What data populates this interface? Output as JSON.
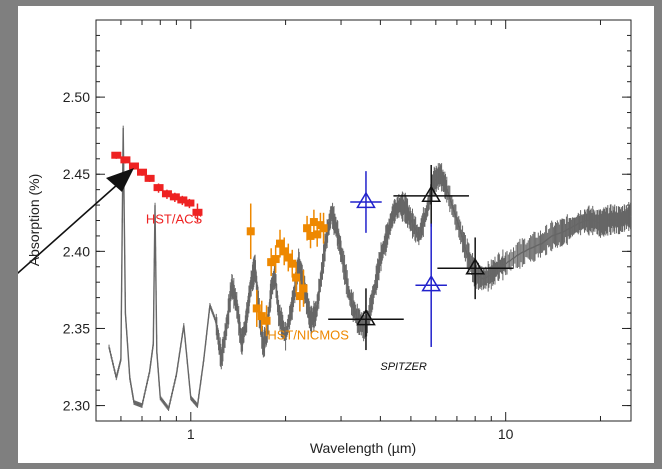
{
  "chart_data": {
    "type": "scatter",
    "xlabel": "Wavelength (µm)",
    "ylabel": "Absorption (%)",
    "xscale": "log",
    "xlim": [
      0.5,
      25
    ],
    "ylim": [
      2.29,
      2.55
    ],
    "xticks": [
      {
        "value": 1,
        "label": "1"
      },
      {
        "value": 10,
        "label": "10"
      }
    ],
    "yticks": [
      {
        "value": 2.3,
        "label": "2.30"
      },
      {
        "value": 2.35,
        "label": "2.35"
      },
      {
        "value": 2.4,
        "label": "2.40"
      },
      {
        "value": 2.45,
        "label": "2.45"
      },
      {
        "value": 2.5,
        "label": "2.50"
      }
    ],
    "grid": false,
    "colors": {
      "model": "#666666",
      "acs": "#ee2222",
      "nicmos": "#ee8800",
      "spitzer": "#111111",
      "spitzer_alt": "#2222cc",
      "arrow": "#111111"
    },
    "annotations": [
      {
        "text": "HST/ACS",
        "color": "#ee2222",
        "x": 0.72,
        "y": 2.418
      },
      {
        "text": "HST/NICMOS",
        "color": "#ee8800",
        "x": 1.75,
        "y": 2.343
      },
      {
        "text": "SPITZER",
        "color": "#111111",
        "italic": true,
        "x": 4.0,
        "y": 2.323
      }
    ],
    "model": {
      "name": "",
      "x": [
        0.55,
        0.58,
        0.6,
        0.61,
        0.62,
        0.64,
        0.66,
        0.7,
        0.74,
        0.76,
        0.77,
        0.78,
        0.8,
        0.85,
        0.9,
        0.95,
        1.0,
        1.05,
        1.1,
        1.15,
        1.2,
        1.25,
        1.3,
        1.35,
        1.4,
        1.45,
        1.5,
        1.55,
        1.6,
        1.65,
        1.7,
        1.75,
        1.8,
        1.85,
        1.9,
        2.0,
        2.1,
        2.2,
        2.3,
        2.4,
        2.5,
        2.6,
        2.7,
        2.8,
        2.9,
        3.0,
        3.2,
        3.4,
        3.6,
        3.8,
        4.0,
        4.2,
        4.4,
        4.6,
        4.8,
        5.0,
        5.3,
        5.6,
        5.9,
        6.2,
        6.5,
        7.0,
        7.5,
        8.0,
        8.5,
        9.0,
        9.5,
        10.0,
        11.0,
        12.0,
        13.0,
        14.0,
        15.0,
        16.0,
        17.0,
        18.0,
        19.0,
        20.0,
        21.0,
        22.0,
        23.0,
        24.0,
        25.0
      ],
      "y": [
        2.338,
        2.318,
        2.33,
        2.48,
        2.36,
        2.318,
        2.302,
        2.3,
        2.322,
        2.34,
        2.43,
        2.335,
        2.305,
        2.298,
        2.32,
        2.352,
        2.305,
        2.3,
        2.33,
        2.365,
        2.355,
        2.33,
        2.352,
        2.378,
        2.365,
        2.34,
        2.355,
        2.378,
        2.39,
        2.36,
        2.338,
        2.35,
        2.375,
        2.385,
        2.36,
        2.345,
        2.365,
        2.392,
        2.375,
        2.355,
        2.36,
        2.385,
        2.41,
        2.425,
        2.415,
        2.4,
        2.37,
        2.355,
        2.35,
        2.372,
        2.395,
        2.41,
        2.425,
        2.43,
        2.428,
        2.42,
        2.41,
        2.425,
        2.445,
        2.45,
        2.44,
        2.42,
        2.4,
        2.385,
        2.382,
        2.385,
        2.39,
        2.392,
        2.398,
        2.402,
        2.405,
        2.41,
        2.412,
        2.415,
        2.418,
        2.42,
        2.42,
        2.418,
        2.42,
        2.421,
        2.42,
        2.422,
        2.423
      ]
    },
    "series": [
      {
        "key": "acs",
        "name": "HST/ACS",
        "marker": "square",
        "x": [
          0.58,
          0.62,
          0.66,
          0.7,
          0.74,
          0.79,
          0.84,
          0.89,
          0.94,
          0.99,
          1.05
        ],
        "y": [
          2.462,
          2.459,
          2.455,
          2.451,
          2.447,
          2.441,
          2.437,
          2.435,
          2.433,
          2.431,
          2.425
        ],
        "yerr": [
          0.002,
          0.002,
          0.002,
          0.002,
          0.002,
          0.003,
          0.003,
          0.003,
          0.003,
          0.003,
          0.006
        ]
      },
      {
        "key": "nicmos",
        "name": "HST/NICMOS",
        "marker": "square",
        "x": [
          1.55,
          1.62,
          1.68,
          1.74,
          1.8,
          1.86,
          1.92,
          1.98,
          2.04,
          2.1,
          2.16,
          2.22,
          2.28,
          2.34,
          2.4,
          2.46,
          2.52,
          2.58,
          2.64
        ],
        "y": [
          2.413,
          2.363,
          2.358,
          2.355,
          2.393,
          2.395,
          2.405,
          2.4,
          2.396,
          2.392,
          2.383,
          2.371,
          2.376,
          2.415,
          2.41,
          2.419,
          2.411,
          2.417,
          2.415
        ],
        "yerr": [
          0.018,
          0.012,
          0.01,
          0.01,
          0.009,
          0.009,
          0.009,
          0.009,
          0.009,
          0.009,
          0.01,
          0.01,
          0.012,
          0.008,
          0.008,
          0.008,
          0.008,
          0.008,
          0.01
        ]
      },
      {
        "key": "spitzer",
        "name": "SPITZER",
        "marker": "triangle",
        "x": [
          3.6,
          5.8,
          8.0
        ],
        "y": [
          2.356,
          2.436,
          2.389
        ],
        "yerr": [
          0.02,
          0.02,
          0.02
        ],
        "xerr_log": [
          0.12,
          0.12,
          0.12
        ]
      },
      {
        "key": "spitzer_alt",
        "name": "",
        "marker": "triangle-open",
        "x": [
          3.6,
          5.8
        ],
        "y": [
          2.432,
          2.378
        ],
        "yerr": [
          0.02,
          0.04
        ],
        "xerr_log": [
          0.05,
          0.05
        ]
      }
    ]
  }
}
